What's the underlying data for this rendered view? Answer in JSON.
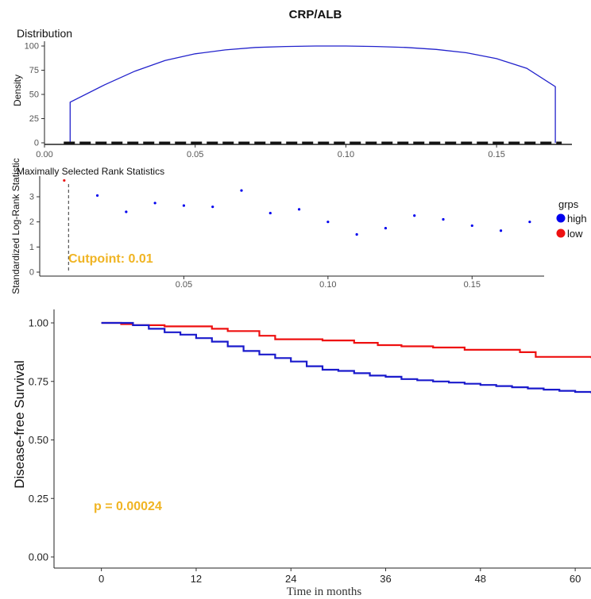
{
  "figure": {
    "title": "CRP/ALB"
  },
  "chart_data": [
    {
      "type": "area",
      "panel": "distribution",
      "title": "Distribution",
      "xlabel": "",
      "ylabel": "Density",
      "xlim": [
        0.0,
        0.175
      ],
      "ylim": [
        0,
        100
      ],
      "x_ticks": [
        "0.00",
        "0.05",
        "0.10",
        "0.15"
      ],
      "x_tick_values": [
        0.0,
        0.05,
        0.1,
        0.15
      ],
      "y_ticks": [
        "0",
        "25",
        "50",
        "75",
        "100"
      ],
      "y_tick_values": [
        0,
        25,
        50,
        75,
        100
      ],
      "grid": false,
      "series": [
        {
          "color": "#2222cc",
          "x": [
            0.0085,
            0.0085,
            0.02,
            0.03,
            0.04,
            0.05,
            0.06,
            0.07,
            0.08,
            0.09,
            0.1,
            0.11,
            0.12,
            0.13,
            0.14,
            0.15,
            0.16,
            0.1695,
            0.1695
          ],
          "y": [
            0,
            42,
            60,
            74,
            85,
            92,
            96,
            98.5,
            99.5,
            100,
            100,
            99.5,
            98.5,
            96.5,
            93,
            87,
            77,
            58,
            0
          ]
        }
      ]
    },
    {
      "type": "scatter",
      "panel": "maxstat",
      "title": "Maximally Selected Rank Statistics",
      "xlabel": "",
      "ylabel": "Standardized Log-Rank Statistic",
      "xlim": [
        0.0,
        0.175
      ],
      "ylim": [
        0,
        3.6
      ],
      "x_ticks": [
        "0.05",
        "0.10",
        "0.15"
      ],
      "x_tick_values": [
        0.05,
        0.1,
        0.15
      ],
      "y_ticks": [
        "0",
        "1",
        "2",
        "3"
      ],
      "y_tick_values": [
        0,
        1,
        2,
        3
      ],
      "grid": false,
      "legend": {
        "title": "grps",
        "position": "right",
        "entries": [
          {
            "label": "high",
            "color": "#0000ee"
          },
          {
            "label": "low",
            "color": "#ee1111"
          }
        ]
      },
      "cutpoint": 0.01,
      "cutpoint_label": "Cutpoint: 0.01",
      "annotation_color": "#f0b423",
      "series": [
        {
          "name": "high",
          "color": "#0000ee",
          "x": [
            0.02,
            0.03,
            0.04,
            0.05,
            0.06,
            0.07,
            0.08,
            0.09,
            0.1,
            0.11,
            0.12,
            0.13,
            0.14,
            0.15,
            0.16,
            0.17
          ],
          "y": [
            3.05,
            2.4,
            2.75,
            2.65,
            2.6,
            3.25,
            2.35,
            2.5,
            2.0,
            1.5,
            1.75,
            2.25,
            2.1,
            1.85,
            1.65,
            2.0
          ]
        },
        {
          "name": "low",
          "color": "#ee1111",
          "x": [
            0.0085
          ],
          "y": [
            3.65
          ]
        }
      ]
    },
    {
      "type": "line",
      "panel": "survival",
      "title": "",
      "xlabel": "Time in months",
      "ylabel": "Disease-free Survival",
      "xlim": [
        -6,
        62
      ],
      "ylim": [
        -0.02,
        1.03
      ],
      "x_ticks": [
        "0",
        "12",
        "24",
        "36",
        "48",
        "60"
      ],
      "x_tick_values": [
        0,
        12,
        24,
        36,
        48,
        60
      ],
      "y_ticks": [
        "0.00",
        "0.25",
        "0.50",
        "0.75",
        "1.00"
      ],
      "y_tick_values": [
        0.0,
        0.25,
        0.5,
        0.75,
        1.0
      ],
      "grid": false,
      "p_value_label": "p = 0.00024",
      "annotation_color": "#f0b423",
      "series": [
        {
          "color": "#ee1111",
          "x": [
            0,
            2.5,
            4,
            8,
            14,
            16,
            20,
            22,
            28,
            32,
            35,
            38,
            42,
            46,
            53,
            55,
            62
          ],
          "y": [
            1.0,
            0.995,
            0.99,
            0.985,
            0.975,
            0.965,
            0.945,
            0.93,
            0.925,
            0.915,
            0.905,
            0.9,
            0.895,
            0.885,
            0.875,
            0.855,
            0.85
          ]
        },
        {
          "color": "#1a1acc",
          "x": [
            0,
            4,
            6,
            8,
            10,
            12,
            14,
            16,
            18,
            20,
            22,
            24,
            26,
            28,
            30,
            32,
            34,
            36,
            38,
            40,
            42,
            44,
            46,
            48,
            50,
            52,
            54,
            56,
            58,
            60,
            62
          ],
          "y": [
            1.0,
            0.99,
            0.975,
            0.96,
            0.95,
            0.935,
            0.92,
            0.9,
            0.88,
            0.865,
            0.85,
            0.835,
            0.815,
            0.8,
            0.795,
            0.785,
            0.775,
            0.77,
            0.76,
            0.755,
            0.75,
            0.745,
            0.74,
            0.735,
            0.73,
            0.725,
            0.72,
            0.715,
            0.71,
            0.705,
            0.7
          ]
        }
      ]
    }
  ]
}
